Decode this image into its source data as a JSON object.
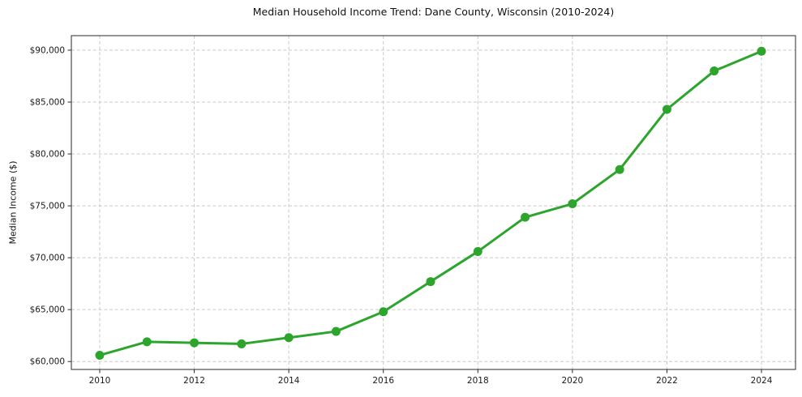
{
  "chart_data": {
    "type": "line",
    "title": "Median Household Income Trend: Dane County, Wisconsin (2010-2024)",
    "xlabel": "",
    "ylabel": "Median Income ($)",
    "x": [
      2010,
      2011,
      2012,
      2013,
      2014,
      2015,
      2016,
      2017,
      2018,
      2019,
      2020,
      2021,
      2022,
      2023,
      2024
    ],
    "values": [
      60600,
      61900,
      61800,
      61700,
      62300,
      62900,
      64800,
      67700,
      70600,
      73900,
      75200,
      78500,
      84300,
      88000,
      89900
    ],
    "series_name": "Median Household Income",
    "xticks": [
      2010,
      2012,
      2014,
      2016,
      2018,
      2020,
      2022,
      2024
    ],
    "xtick_labels": [
      "2010",
      "2012",
      "2014",
      "2016",
      "2018",
      "2020",
      "2022",
      "2024"
    ],
    "yticks": [
      60000,
      65000,
      70000,
      75000,
      80000,
      85000,
      90000
    ],
    "ytick_labels": [
      "$60,000",
      "$65,000",
      "$70,000",
      "$75,000",
      "$80,000",
      "$85,000",
      "$90,000"
    ],
    "xlim": [
      2009.4,
      2024.72
    ],
    "ylim": [
      59235,
      91400
    ],
    "grid": "on",
    "grid_style": "dashed",
    "legend": "none",
    "colors": {
      "line": "#2da52d",
      "marker": "#2da52d",
      "grid": "#c9c9c9",
      "spine": "#2a2a2a",
      "background": "#ffffff"
    }
  }
}
